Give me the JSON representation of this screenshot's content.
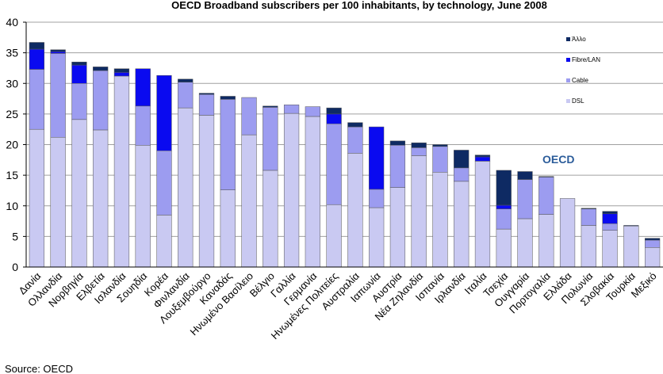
{
  "chart_data": {
    "type": "bar",
    "stacked": true,
    "title": "OECD Broadband subscribers per 100 inhabitants, by technology, June 2008",
    "xlabel": "",
    "ylabel": "",
    "ylim": [
      0,
      40
    ],
    "yticks": [
      0,
      5,
      10,
      15,
      20,
      25,
      30,
      35,
      40
    ],
    "grid": true,
    "legend_position": "top-right",
    "annotation": "OECD",
    "source": "Source: OECD",
    "categories": [
      "Δανία",
      "Ολλανδία",
      "Νορβηγία",
      "Ελβετία",
      "Ισλανδία",
      "Σουηδία",
      "Κορέα",
      "Φινλανδία",
      "Λουξεμβούργο",
      "Καναδάς",
      "Ηνωμένο Βασίλειο",
      "Βέλγιο",
      "Γαλλία",
      "Γερμανία",
      "Ηνωμένες Πολιτείες",
      "Αυστραλία",
      "Ιαπωνία",
      "Αυστρία",
      "Νέα Ζηλανδία",
      "Ισπανία",
      "Ιρλανδία",
      "Ιταλία",
      "Τσεχία",
      "Ουγγαρία",
      "Πορτογαλία",
      "Ελλάδα",
      "Πολωνία",
      "Σλοβακία",
      "Τουρκία",
      "Μεξικό"
    ],
    "highlight_category": "OECD",
    "series": [
      {
        "name": "DSL",
        "color": "#c9c9f2",
        "values": [
          22.5,
          21.2,
          24.1,
          22.4,
          31.2,
          19.9,
          8.5,
          26.0,
          24.8,
          12.6,
          21.6,
          15.8,
          25.1,
          24.6,
          10.2,
          18.6,
          9.7,
          13.0,
          18.2,
          15.5,
          14.0,
          17.3,
          6.2,
          7.9,
          8.6,
          11.2,
          6.8,
          6.0,
          6.7,
          3.2
        ]
      },
      {
        "name": "Cable",
        "color": "#9c9cf0",
        "values": [
          9.8,
          13.7,
          5.9,
          9.7,
          0.0,
          6.4,
          10.5,
          4.2,
          3.4,
          14.8,
          6.1,
          10.3,
          1.4,
          1.6,
          13.2,
          4.3,
          3.0,
          6.9,
          1.3,
          4.2,
          2.2,
          0.0,
          3.3,
          6.4,
          6.1,
          0.0,
          2.7,
          1.1,
          0.0,
          1.2
        ]
      },
      {
        "name": "Fibre/LAN",
        "color": "#0a0af0",
        "values": [
          3.3,
          0.3,
          3.0,
          0.0,
          0.6,
          6.1,
          12.3,
          0.0,
          0.0,
          0.0,
          0.0,
          0.0,
          0.0,
          0.0,
          1.6,
          0.0,
          10.2,
          0.0,
          0.0,
          0.0,
          0.0,
          0.7,
          0.6,
          0.0,
          0.0,
          0.0,
          0.0,
          1.6,
          0.0,
          0.0
        ]
      },
      {
        "name": "Άλλο",
        "color": "#0e2a63",
        "values": [
          1.1,
          0.3,
          0.5,
          0.6,
          0.6,
          0.0,
          0.0,
          0.5,
          0.2,
          0.5,
          0.0,
          0.2,
          0.0,
          0.0,
          1.0,
          0.7,
          0.0,
          0.7,
          0.8,
          0.3,
          2.9,
          0.3,
          5.7,
          1.3,
          0.1,
          0.0,
          0.1,
          0.4,
          0.1,
          0.3
        ]
      }
    ]
  }
}
